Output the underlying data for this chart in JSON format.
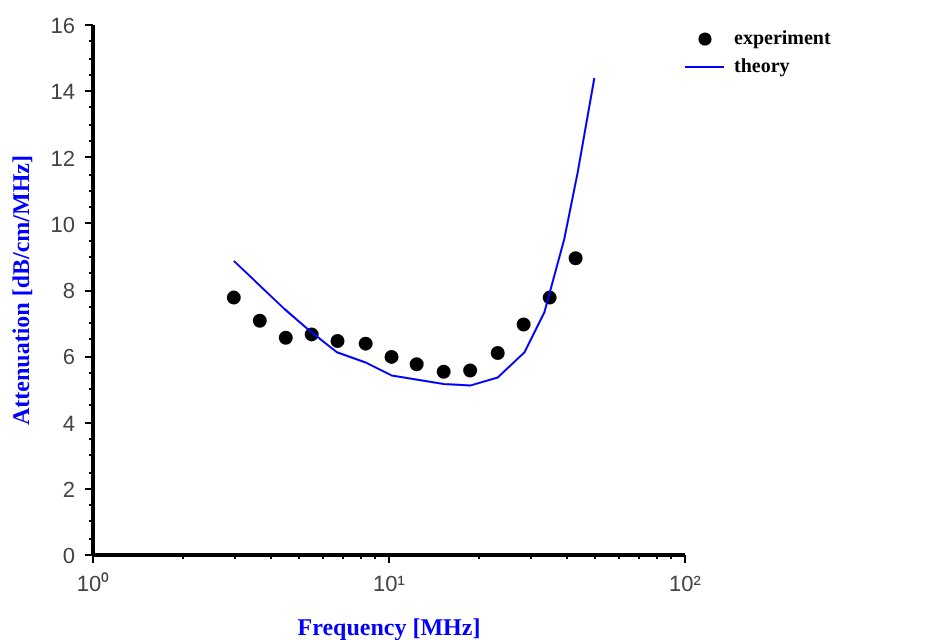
{
  "chart_data": {
    "type": "scatter",
    "xlabel": "Frequency [MHz]",
    "ylabel": "Attenuation [dB/cm/MHz]",
    "log": "x",
    "xlim": [
      1,
      100
    ],
    "ylim": [
      0,
      16
    ],
    "xticks": [
      {
        "value": 1,
        "label": "10⁰"
      },
      {
        "value": 10,
        "label": "10¹"
      },
      {
        "value": 100,
        "label": "10²"
      }
    ],
    "yticks": [
      0,
      2,
      4,
      6,
      8,
      10,
      12,
      14,
      16
    ],
    "grid": false,
    "legend": "right",
    "marker": "circle",
    "series": [
      {
        "name": "experiment",
        "color": "#000000",
        "x": [
          2.99,
          3.66,
          4.48,
          5.48,
          6.7,
          8.34,
          10.2,
          12.4,
          15.3,
          18.8,
          23.3,
          28.5,
          34.9,
          42.7
        ],
        "values": [
          7.77,
          7.07,
          6.56,
          6.66,
          6.46,
          6.38,
          5.98,
          5.76,
          5.53,
          5.57,
          6.1,
          6.96,
          7.77,
          8.96
        ]
      },
      {
        "name": "theory",
        "type": "line",
        "color": "#0000ff",
        "line_style": "solid",
        "marker": "none",
        "x": [
          2.99,
          4.43,
          5.48,
          6.67,
          8.29,
          10.2,
          15.3,
          18.9,
          23.3,
          28.7,
          33.5,
          39.1,
          43.4,
          49.4
        ],
        "values": [
          8.88,
          7.43,
          6.72,
          6.12,
          5.82,
          5.42,
          5.16,
          5.12,
          5.36,
          6.12,
          7.33,
          9.54,
          11.55,
          14.4
        ]
      }
    ]
  }
}
